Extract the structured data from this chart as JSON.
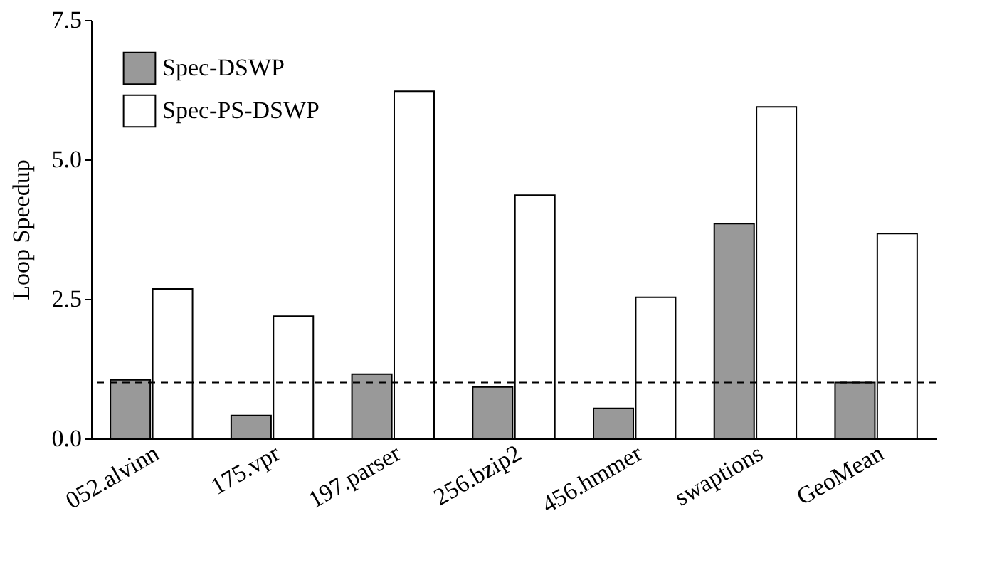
{
  "chart_data": {
    "type": "bar",
    "ylabel": "Loop Speedup",
    "categories": [
      "052.alvinn",
      "175.vpr",
      "197.parser",
      "256.bzip2",
      "456.hmmer",
      "swaptions",
      "GeoMean"
    ],
    "series": [
      {
        "name": "Spec-DSWP",
        "color": "#999999",
        "values": [
          1.05,
          0.41,
          1.15,
          0.92,
          0.54,
          3.85,
          1.0
        ]
      },
      {
        "name": "Spec-PS-DSWP",
        "color": "#ffffff",
        "values": [
          2.68,
          2.19,
          6.22,
          4.36,
          2.53,
          5.94,
          3.67
        ]
      }
    ],
    "ylim": [
      0,
      7.5
    ],
    "yticks": [
      {
        "value": 0,
        "label": "0.0"
      },
      {
        "value": 2.5,
        "label": "2.5"
      },
      {
        "value": 5,
        "label": "5.0"
      },
      {
        "value": 7.5,
        "label": "7.5"
      }
    ],
    "ref_lines": [
      {
        "axis": "y",
        "value": 1.0,
        "line_style": "dashed"
      }
    ],
    "legend": "top left",
    "grid": false
  }
}
